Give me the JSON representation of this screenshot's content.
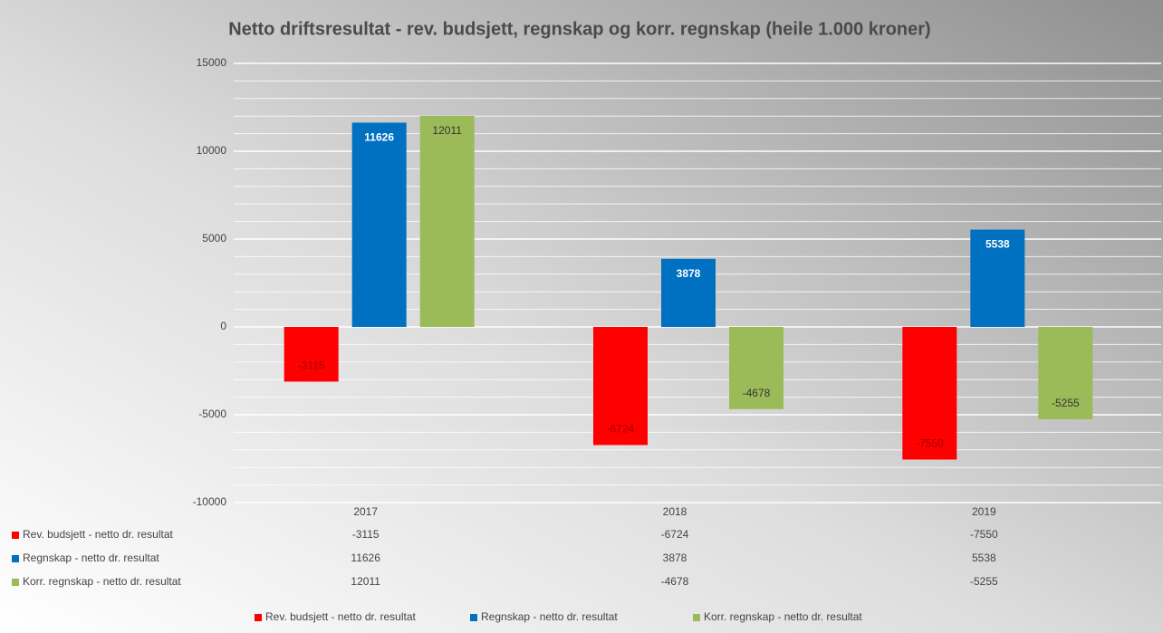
{
  "chart_data": {
    "type": "bar",
    "title": "Netto driftsresultat - rev. budsjett, regnskap og korr. regnskap (heile 1.000 kroner)",
    "categories": [
      "2017",
      "2018",
      "2019"
    ],
    "series": [
      {
        "name": "Rev. budsjett - netto dr. resultat",
        "color": "#ff0000",
        "label_color": "#a00000",
        "values": [
          -3115,
          -6724,
          -7550
        ]
      },
      {
        "name": "Regnskap - netto dr. resultat",
        "color": "#0070c0",
        "label_color": "#ffffff",
        "values": [
          11626,
          3878,
          5538
        ]
      },
      {
        "name": "Korr. regnskap - netto dr. resultat",
        "color": "#9bbb59",
        "label_color": "#333333",
        "values": [
          12011,
          -4678,
          -5255
        ]
      }
    ],
    "ylim": [
      -10000,
      15000
    ],
    "yticks": [
      -10000,
      -5000,
      0,
      5000,
      10000,
      15000
    ],
    "minor_tick_step": 1000,
    "grid": true,
    "legend": "bottom",
    "data_table": true
  }
}
